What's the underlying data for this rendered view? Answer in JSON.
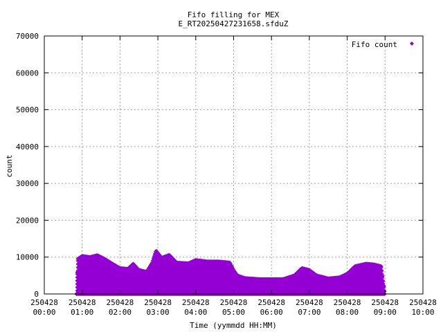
{
  "chart_data": {
    "type": "scatter",
    "title": "Fifo filling for MEX",
    "subtitle": "E_RT20250427231658.sfduZ",
    "xlabel": "Time (yymmdd HH:MM)",
    "ylabel": "count",
    "legend": {
      "entry": "Fifo count",
      "position": "top-right"
    },
    "grid": true,
    "marker_color": "#9400d3",
    "xlim_hours": [
      0,
      10
    ],
    "ylim": [
      0,
      70000
    ],
    "y_ticks": [
      0,
      10000,
      20000,
      30000,
      40000,
      50000,
      60000,
      70000
    ],
    "x_ticks": [
      {
        "date": "250428",
        "time": "00:00",
        "hour": 0
      },
      {
        "date": "250428",
        "time": "01:00",
        "hour": 1
      },
      {
        "date": "250428",
        "time": "02:00",
        "hour": 2
      },
      {
        "date": "250428",
        "time": "03:00",
        "hour": 3
      },
      {
        "date": "250428",
        "time": "04:00",
        "hour": 4
      },
      {
        "date": "250428",
        "time": "05:00",
        "hour": 5
      },
      {
        "date": "250428",
        "time": "06:00",
        "hour": 6
      },
      {
        "date": "250428",
        "time": "07:00",
        "hour": 7
      },
      {
        "date": "250428",
        "time": "08:00",
        "hour": 8
      },
      {
        "date": "250428",
        "time": "09:00",
        "hour": 9
      },
      {
        "date": "250428",
        "time": "10:00",
        "hour": 10
      }
    ],
    "data_range_hours": [
      0.85,
      9.0
    ],
    "series": [
      {
        "name": "Fifo count",
        "envelope_max": [
          {
            "hour": 0.85,
            "value": 0
          },
          {
            "hour": 0.88,
            "value": 9500
          },
          {
            "hour": 1.0,
            "value": 10300
          },
          {
            "hour": 1.2,
            "value": 10000
          },
          {
            "hour": 1.4,
            "value": 10500
          },
          {
            "hour": 1.6,
            "value": 9500
          },
          {
            "hour": 1.8,
            "value": 8200
          },
          {
            "hour": 2.0,
            "value": 7000
          },
          {
            "hour": 2.2,
            "value": 6800
          },
          {
            "hour": 2.35,
            "value": 8200
          },
          {
            "hour": 2.5,
            "value": 6500
          },
          {
            "hour": 2.7,
            "value": 6000
          },
          {
            "hour": 2.85,
            "value": 8500
          },
          {
            "hour": 2.95,
            "value": 11800
          },
          {
            "hour": 3.1,
            "value": 9800
          },
          {
            "hour": 3.3,
            "value": 10600
          },
          {
            "hour": 3.5,
            "value": 8500
          },
          {
            "hour": 3.8,
            "value": 8300
          },
          {
            "hour": 4.0,
            "value": 9200
          },
          {
            "hour": 4.3,
            "value": 8800
          },
          {
            "hour": 4.6,
            "value": 8800
          },
          {
            "hour": 4.9,
            "value": 8500
          },
          {
            "hour": 5.0,
            "value": 6500
          },
          {
            "hour": 5.1,
            "value": 5000
          },
          {
            "hour": 5.3,
            "value": 4300
          },
          {
            "hour": 5.7,
            "value": 4000
          },
          {
            "hour": 6.0,
            "value": 4000
          },
          {
            "hour": 6.3,
            "value": 4000
          },
          {
            "hour": 6.6,
            "value": 5000
          },
          {
            "hour": 6.8,
            "value": 7000
          },
          {
            "hour": 7.0,
            "value": 6500
          },
          {
            "hour": 7.2,
            "value": 5000
          },
          {
            "hour": 7.5,
            "value": 4200
          },
          {
            "hour": 7.8,
            "value": 4500
          },
          {
            "hour": 8.0,
            "value": 5500
          },
          {
            "hour": 8.2,
            "value": 7500
          },
          {
            "hour": 8.5,
            "value": 8200
          },
          {
            "hour": 8.7,
            "value": 8000
          },
          {
            "hour": 8.9,
            "value": 7500
          },
          {
            "hour": 9.0,
            "value": 0
          }
        ]
      }
    ]
  }
}
